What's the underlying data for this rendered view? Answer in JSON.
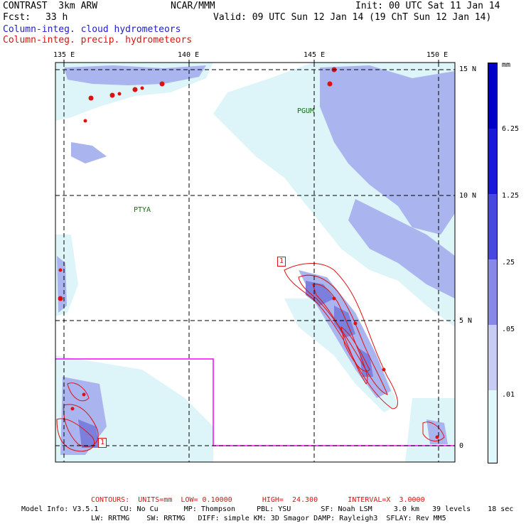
{
  "header": {
    "model": "CONTRAST  3km ARW",
    "center": "NCAR/MMM",
    "init": "Init: 00 UTC Sat 11 Jan 14",
    "fcst_label": "Fcst:",
    "fcst_value": "33 h",
    "valid": "Valid: 09 UTC Sun 12 Jan 14 (19 ChT Sun 12 Jan 14)",
    "field_cloud": "Column-integ. cloud hydrometeors",
    "field_precip": "Column-integ. precip. hydrometeors"
  },
  "map": {
    "lon_labels": [
      "135 E",
      "140 E",
      "145 E",
      "150 E"
    ],
    "lat_labels": [
      "15 N",
      "10 N",
      "5 N",
      "0"
    ],
    "stations": [
      {
        "id": "PGUM",
        "label": "PGUM"
      },
      {
        "id": "PTYA",
        "label": "PTYA"
      }
    ],
    "contour_boxes": [
      "1",
      "1"
    ],
    "colors": {
      "cloud_light": "#ddf4f8",
      "cloud_mid": "#aab4ee",
      "cloud_dark": "#7a80dc",
      "precip_contour": "#e01010",
      "domain_box": "#ff00ff",
      "grid": "#000000",
      "station": "#107010"
    }
  },
  "colorbar": {
    "units": "mm",
    "levels": [
      "6.25",
      "1.25",
      ".25",
      ".05",
      ".01"
    ],
    "colors": [
      "#0000c8",
      "#1818d8",
      "#4848e0",
      "#8888e8",
      "#c8ccf4",
      "#e0f8fc",
      "#ffffff"
    ]
  },
  "footer": {
    "contours": "CONTOURS:  UNITS=mm  LOW= 0.10000       HIGH=  24.300       INTERVAL=X  3.0000",
    "model_info_1": "Model Info: V3.5.1     CU: No Cu      MP: Thompson     PBL: YSU       SF: Noah LSM     3.0 km   39 levels    18 sec",
    "model_info_2": "LW: RRTMG    SW: RRTMG   DIFF: simple KM: 3D Smagor DAMP: Rayleigh3  SFLAY: Rev MM5"
  }
}
